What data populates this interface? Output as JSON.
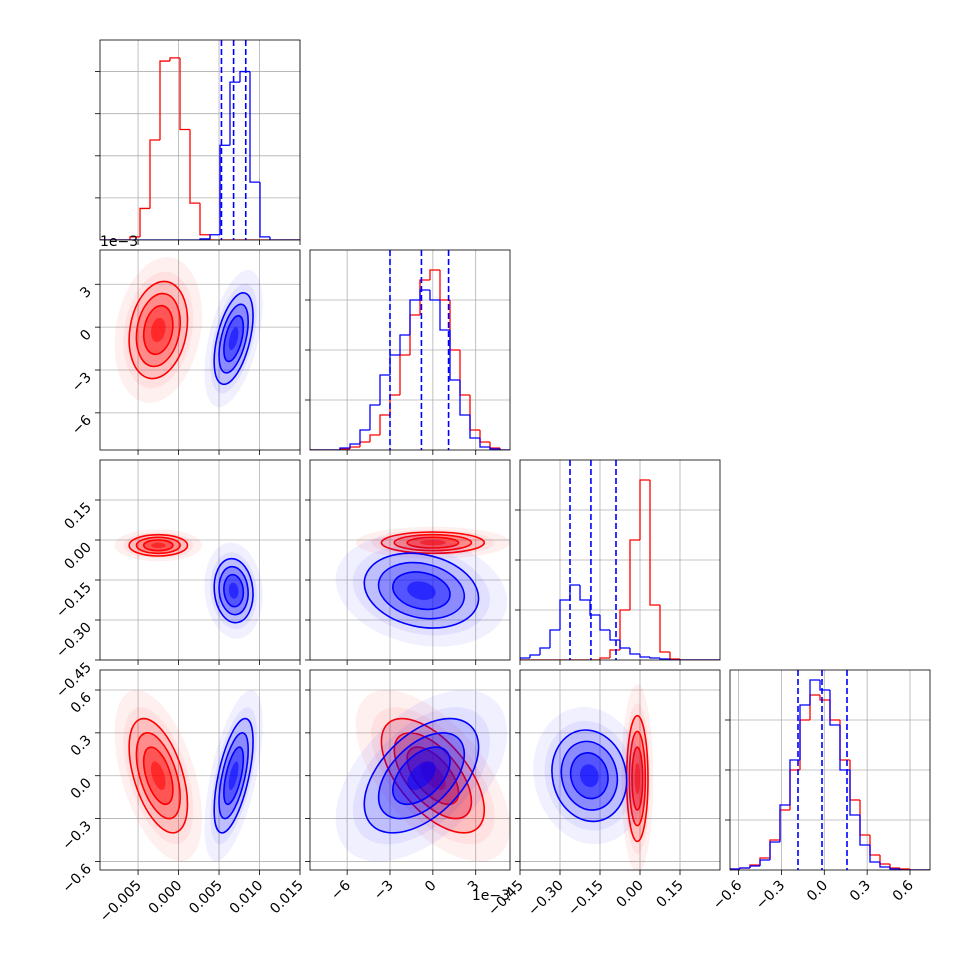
{
  "chart_data": {
    "type": "corner",
    "grid": true,
    "params": [
      {
        "lim": [
          -0.0097,
          0.015
        ],
        "ticks": [
          {
            "value": -0.005,
            "label": "−0.005"
          },
          {
            "value": 0,
            "label": "0.000"
          },
          0.005,
          {
            "value": 0.01,
            "label": "0.010"
          },
          0.015
        ]
      },
      {
        "lim": [
          -8.6,
          5.4
        ],
        "ticks": [
          {
            "value": -6,
            "label": "−6"
          },
          {
            "value": -3,
            "label": "−3"
          },
          0,
          3
        ],
        "offset_label": "1e−3"
      },
      {
        "lim": [
          -0.45,
          0.3
        ],
        "ticks": [
          {
            "value": -0.45,
            "label": "−0.45"
          },
          {
            "value": -0.3,
            "label": "−0.30"
          },
          {
            "value": -0.15,
            "label": "−0.15"
          },
          {
            "value": 0,
            "label": "0.00"
          },
          0.15
        ]
      },
      {
        "lim": [
          -0.66,
          0.74
        ],
        "ticks": [
          {
            "value": -0.6,
            "label": "−0.6"
          },
          {
            "value": -0.3,
            "label": "−0.3"
          },
          {
            "value": 0,
            "label": "0.0"
          },
          0.3,
          0.6
        ]
      }
    ],
    "histograms": [
      {
        "type": "histogram",
        "ylim": [
          0,
          190
        ],
        "yticks": [
          40,
          80,
          120,
          160
        ],
        "bins": [
          -0.0097,
          -0.008465,
          -0.00723,
          -0.005995,
          -0.00476,
          -0.003525,
          -0.00229,
          -0.001055,
          0.00018,
          0.001415,
          0.00265,
          0.003885,
          0.00512,
          0.006355,
          0.00759,
          0.008825,
          0.01006,
          0.011295,
          0.01253,
          0.013765,
          0.015
        ],
        "series": [
          {
            "color": "#ff0000",
            "values": [
              0,
              0,
              0,
              3,
              30,
              95,
              170,
              173,
              105,
              35,
              5,
              0,
              0,
              0,
              0,
              0,
              0,
              0,
              0,
              0
            ]
          },
          {
            "color": "#0000ff",
            "values": [
              0,
              0,
              0,
              0,
              0,
              0,
              0,
              0,
              0,
              0,
              1,
              5,
              90,
              150,
              160,
              55,
              3,
              0,
              0,
              0
            ],
            "quantiles": [
              0.0053,
              0.0068,
              0.0083
            ]
          }
        ]
      },
      {
        "type": "histogram",
        "ylim": [
          0,
          200
        ],
        "yticks": [
          50,
          100,
          150
        ],
        "bins": [
          -8.6,
          -7.9,
          -7.2,
          -6.5,
          -5.8,
          -5.1,
          -4.4,
          -3.7,
          -3.0,
          -2.3,
          -1.6,
          -0.9,
          -0.2,
          0.5,
          1.2,
          1.9,
          2.6,
          3.3,
          4.0,
          4.7,
          5.4
        ],
        "series": [
          {
            "color": "#ff0000",
            "values": [
              0,
              0,
              0,
              1,
              3,
              8,
              15,
              35,
              55,
              95,
              135,
              170,
              180,
              150,
              100,
              55,
              20,
              8,
              2,
              0
            ]
          },
          {
            "color": "#0000ff",
            "values": [
              0,
              0,
              0,
              2,
              6,
              20,
              45,
              75,
              95,
              115,
              150,
              160,
              150,
              120,
              70,
              35,
              12,
              3,
              1,
              0
            ],
            "quantiles": [
              -3.0,
              -0.8,
              1.1
            ]
          }
        ]
      },
      {
        "type": "histogram",
        "ylim": [
          0,
          200
        ],
        "yticks": [
          50,
          100,
          150
        ],
        "bins": [
          -0.45,
          -0.4125,
          -0.375,
          -0.3375,
          -0.3,
          -0.2625,
          -0.225,
          -0.1875,
          -0.15,
          -0.1125,
          -0.075,
          -0.0375,
          0,
          0.0375,
          0.075,
          0.1125,
          0.15,
          0.1875,
          0.225,
          0.2625,
          0.3
        ],
        "series": [
          {
            "color": "#ff0000",
            "values": [
              0,
              0,
              0,
              0,
              0,
              0,
              0,
              0,
              2,
              10,
              50,
              120,
              180,
              55,
              8,
              1,
              0,
              0,
              0,
              0
            ]
          },
          {
            "color": "#0000ff",
            "values": [
              2,
              5,
              12,
              30,
              60,
              75,
              60,
              45,
              30,
              20,
              12,
              6,
              3,
              2,
              1,
              0,
              0,
              0,
              0,
              0
            ],
            "quantiles": [
              -0.2625,
              -0.184,
              -0.09
            ]
          }
        ]
      },
      {
        "type": "histogram",
        "ylim": [
          0,
          200
        ],
        "yticks": [
          50,
          100,
          150
        ],
        "bins": [
          -0.66,
          -0.59,
          -0.52,
          -0.45,
          -0.38,
          -0.31,
          -0.24,
          -0.17,
          -0.1,
          -0.03,
          0.04,
          0.11,
          0.18,
          0.25,
          0.32,
          0.39,
          0.46,
          0.53,
          0.6,
          0.67,
          0.74
        ],
        "series": [
          {
            "color": "#ff0000",
            "values": [
              1,
              2,
              5,
              12,
              30,
              60,
              100,
              150,
              175,
              170,
              150,
              110,
              70,
              35,
              15,
              6,
              2,
              1,
              0,
              0
            ]
          },
          {
            "color": "#0000ff",
            "values": [
              1,
              2,
              4,
              10,
              28,
              65,
              110,
              165,
              190,
              180,
              145,
              100,
              55,
              25,
              8,
              3,
              1,
              0,
              0,
              0
            ],
            "quantiles": [
              -0.184,
              -0.016,
              0.159
            ]
          }
        ]
      }
    ],
    "pairs": [
      {
        "type": "contour",
        "series": [
          {
            "color": "#ff0000",
            "mean": [
              -0.0025,
              -0.2
            ],
            "sd": [
              0.0018,
              1.7
            ],
            "corr": 0.2
          },
          {
            "color": "#0000ff",
            "mean": [
              0.0068,
              -0.8
            ],
            "sd": [
              0.0012,
              1.6
            ],
            "corr": 0.5
          }
        ]
      },
      {
        "type": "contour",
        "series": [
          {
            "color": "#ff0000",
            "mean": [
              -0.0025,
              -0.02
            ],
            "sd": [
              0.0018,
              0.02
            ],
            "corr": 0.0
          },
          {
            "color": "#0000ff",
            "mean": [
              0.0068,
              -0.19
            ],
            "sd": [
              0.0012,
              0.06
            ],
            "corr": -0.1
          }
        ]
      },
      {
        "type": "contour",
        "series": [
          {
            "color": "#ff0000",
            "mean": [
              0,
              -0.01
            ],
            "sd": [
              1.8,
              0.02
            ],
            "corr": 0.0
          },
          {
            "color": "#0000ff",
            "mean": [
              -0.8,
              -0.19
            ],
            "sd": [
              2.0,
              0.07
            ],
            "corr": -0.2
          }
        ]
      },
      {
        "type": "contour",
        "series": [
          {
            "color": "#ff0000",
            "mean": [
              -0.0025,
              0.0
            ],
            "sd": [
              0.0018,
              0.2
            ],
            "corr": -0.5
          },
          {
            "color": "#0000ff",
            "mean": [
              0.0068,
              0.0
            ],
            "sd": [
              0.0012,
              0.2
            ],
            "corr": 0.6
          }
        ]
      },
      {
        "type": "contour",
        "series": [
          {
            "color": "#ff0000",
            "mean": [
              0,
              0
            ],
            "sd": [
              1.8,
              0.2
            ],
            "corr": -0.6
          },
          {
            "color": "#0000ff",
            "mean": [
              -0.8,
              0
            ],
            "sd": [
              2.0,
              0.2
            ],
            "corr": 0.5
          }
        ]
      },
      {
        "type": "contour",
        "series": [
          {
            "color": "#ff0000",
            "mean": [
              -0.01,
              -0.02
            ],
            "sd": [
              0.02,
              0.22
            ],
            "corr": 0.0
          },
          {
            "color": "#0000ff",
            "mean": [
              -0.19,
              0.0
            ],
            "sd": [
              0.07,
              0.16
            ],
            "corr": -0.1
          }
        ]
      }
    ]
  }
}
